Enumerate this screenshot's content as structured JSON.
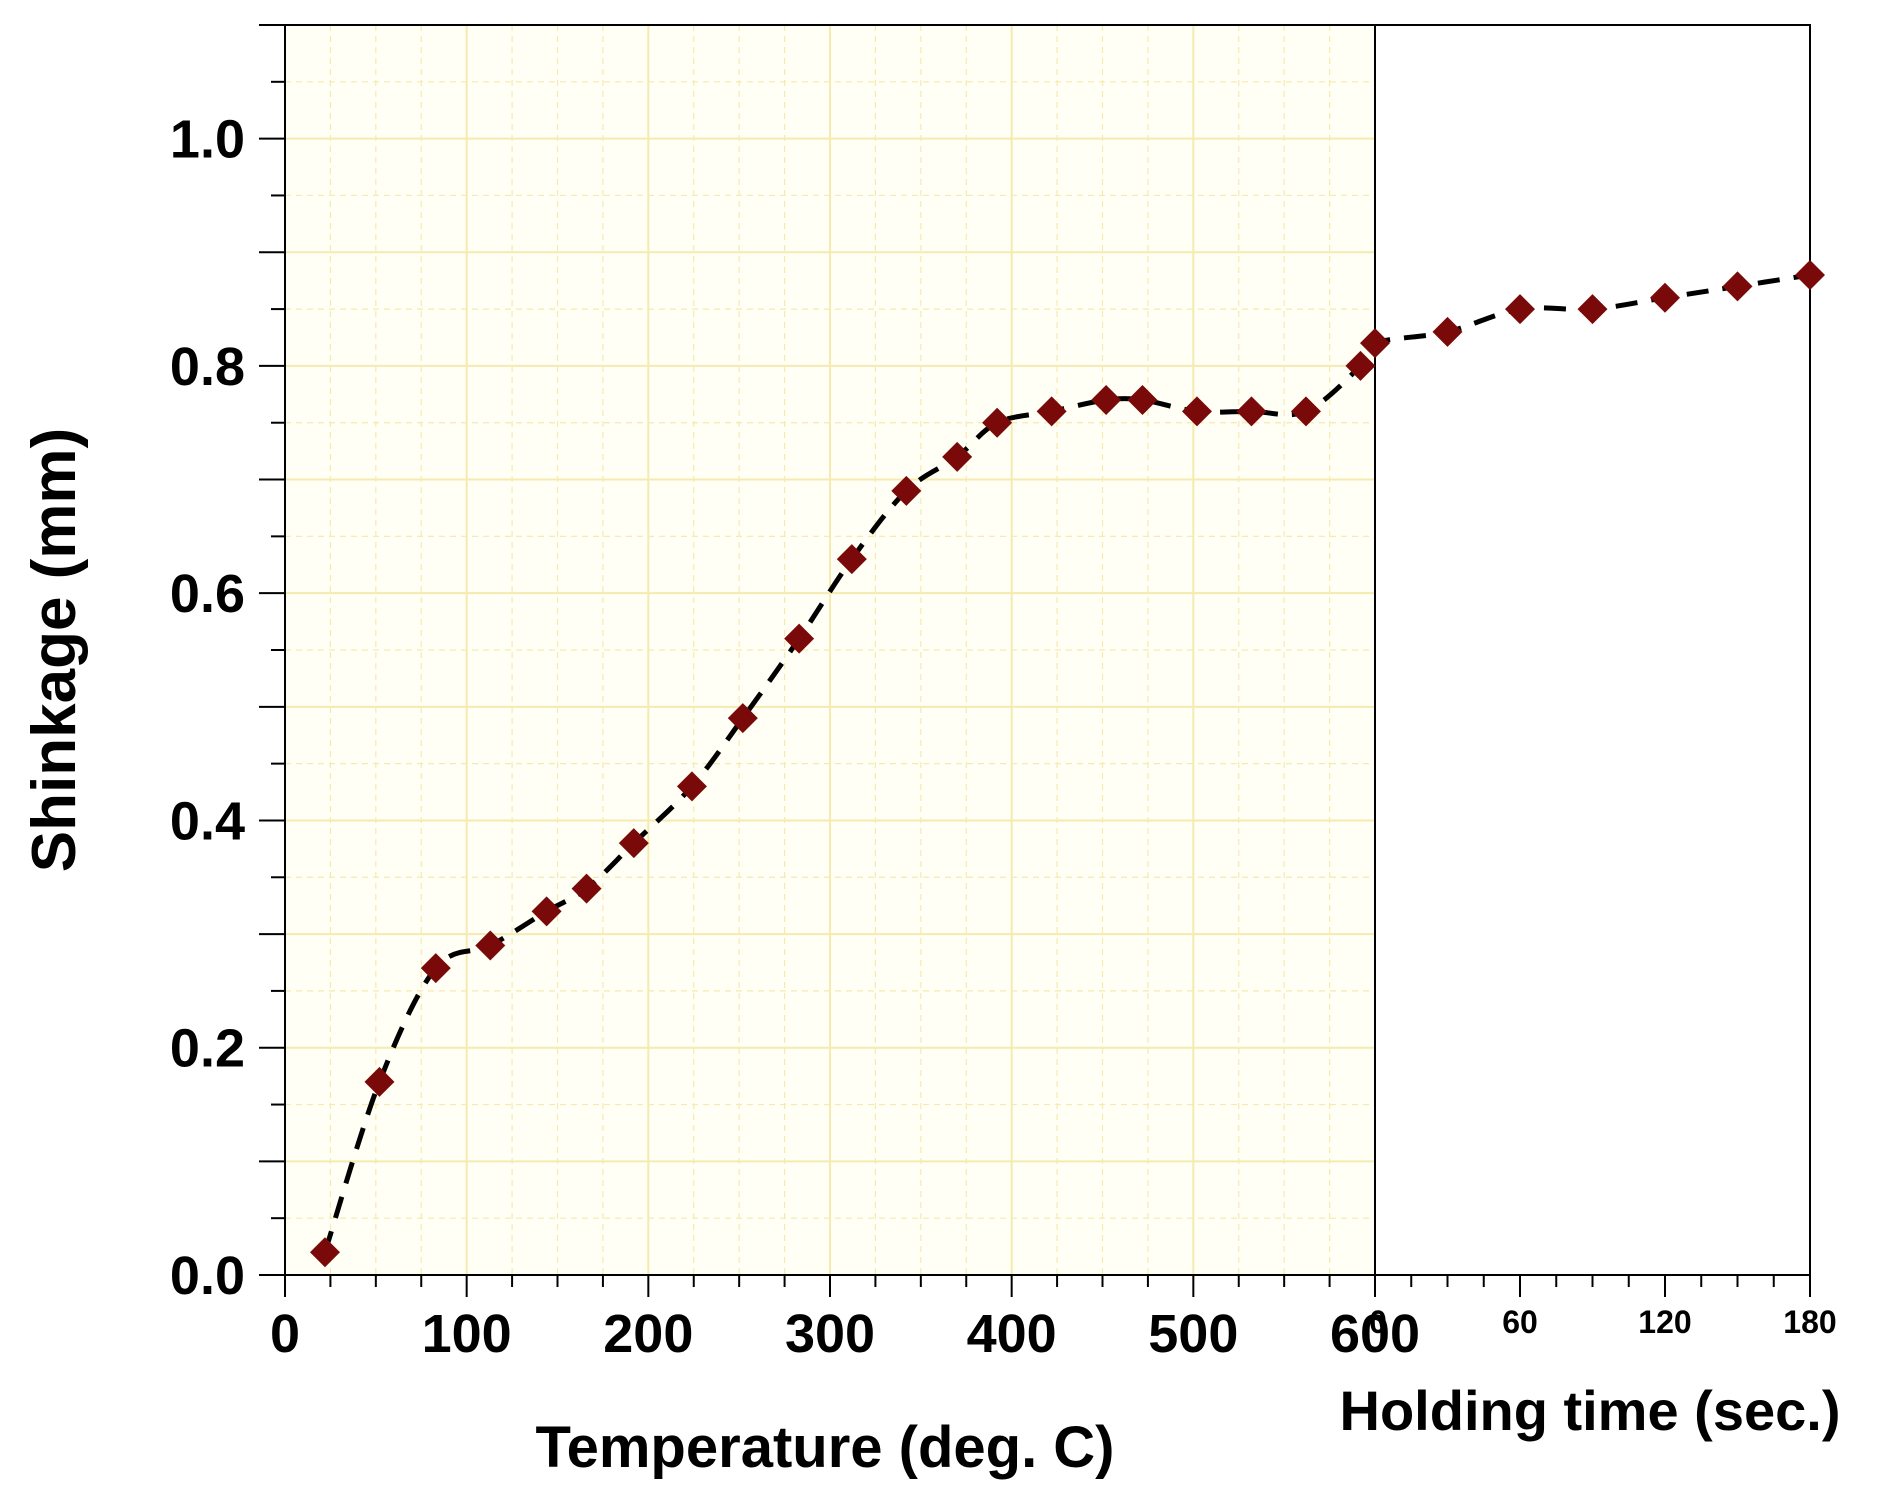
{
  "chart_data": {
    "type": "scatter",
    "ylabel": "Shinkage (mm)",
    "xlabel_left": "Temperature (deg. C)",
    "xlabel_right": "Holding time (sec.)",
    "y_ticks": [
      "0.0",
      "0.2",
      "0.4",
      "0.6",
      "0.8",
      "1.0"
    ],
    "x_ticks_left": [
      "0",
      "100",
      "200",
      "300",
      "400",
      "500",
      "600"
    ],
    "x_ticks_right": [
      "0",
      "60",
      "120",
      "180"
    ],
    "ylim": [
      0,
      1.1
    ],
    "xlim_left": [
      0,
      600
    ],
    "xlim_right": [
      0,
      180
    ],
    "grid": true,
    "colors": {
      "marker": "#7a0a0a",
      "line": "#000000",
      "grid": "#f5eab0",
      "panel_bg": "#fffff5"
    },
    "series": [
      {
        "segment": "temperature",
        "points": [
          [
            22,
            0.02
          ],
          [
            52,
            0.17
          ],
          [
            83,
            0.27
          ],
          [
            113,
            0.29
          ],
          [
            144,
            0.32
          ],
          [
            166,
            0.34
          ],
          [
            192,
            0.38
          ],
          [
            224,
            0.43
          ],
          [
            252,
            0.49
          ],
          [
            283,
            0.56
          ],
          [
            312,
            0.63
          ],
          [
            342,
            0.69
          ],
          [
            370,
            0.72
          ],
          [
            392,
            0.75
          ],
          [
            422,
            0.76
          ],
          [
            452,
            0.77
          ],
          [
            472,
            0.77
          ],
          [
            502,
            0.76
          ],
          [
            532,
            0.76
          ],
          [
            562,
            0.76
          ],
          [
            592,
            0.8
          ]
        ]
      },
      {
        "segment": "holding",
        "points": [
          [
            0,
            0.82
          ],
          [
            30,
            0.83
          ],
          [
            60,
            0.85
          ],
          [
            90,
            0.85
          ],
          [
            120,
            0.86
          ],
          [
            150,
            0.87
          ],
          [
            180,
            0.88
          ]
        ]
      }
    ]
  }
}
